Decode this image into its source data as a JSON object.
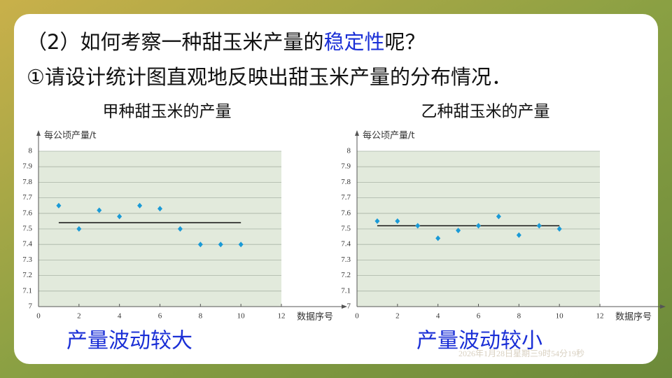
{
  "slide": {
    "heading": [
      "（2）如何考察一种甜玉米产量的",
      "稳定性",
      "呢？"
    ],
    "question": "①请设计统计图直观地反映出甜玉米产量的分布情况．",
    "timestamp": "2026年1月28日星期三9时54分19秒"
  },
  "chart_data": [
    {
      "type": "scatter",
      "title": "甲种甜玉米的产量",
      "y_label": "每公顷产量/t",
      "x_label": "数据序号",
      "conclusion": "产量波动较大",
      "x": [
        1,
        2,
        3,
        4,
        5,
        6,
        7,
        8,
        9,
        10
      ],
      "series": [
        {
          "color": "#1a9ad6",
          "values": [
            7.65,
            7.5,
            7.62,
            7.58,
            7.65,
            7.63,
            7.5,
            7.4,
            7.4,
            7.4
          ]
        }
      ],
      "hline": {
        "value": 7.54,
        "x": [
          1,
          10
        ]
      },
      "xlim": [
        0,
        12
      ],
      "ylim": [
        7,
        8
      ],
      "xticks": [
        0,
        2,
        4,
        6,
        8,
        10,
        12
      ],
      "yticks": [
        7,
        7.1,
        7.2,
        7.3,
        7.4,
        7.5,
        7.6,
        7.7,
        7.8,
        7.9,
        8
      ],
      "grid": true
    },
    {
      "type": "scatter",
      "title": "乙种甜玉米的产量",
      "y_label": "每公顷产量/t",
      "x_label": "数据序号",
      "conclusion": "产量波动较小",
      "x": [
        1,
        2,
        3,
        4,
        5,
        6,
        7,
        8,
        9,
        10
      ],
      "series": [
        {
          "color": "#1a9ad6",
          "values": [
            7.55,
            7.55,
            7.52,
            7.44,
            7.49,
            7.52,
            7.58,
            7.46,
            7.52,
            7.5
          ]
        }
      ],
      "hline": {
        "value": 7.52,
        "x": [
          1,
          10
        ]
      },
      "xlim": [
        0,
        12
      ],
      "ylim": [
        7,
        8
      ],
      "xticks": [
        0,
        2,
        4,
        6,
        8,
        10,
        12
      ],
      "yticks": [
        7,
        7.1,
        7.2,
        7.3,
        7.4,
        7.5,
        7.6,
        7.7,
        7.8,
        7.9,
        8
      ],
      "grid": true
    }
  ]
}
